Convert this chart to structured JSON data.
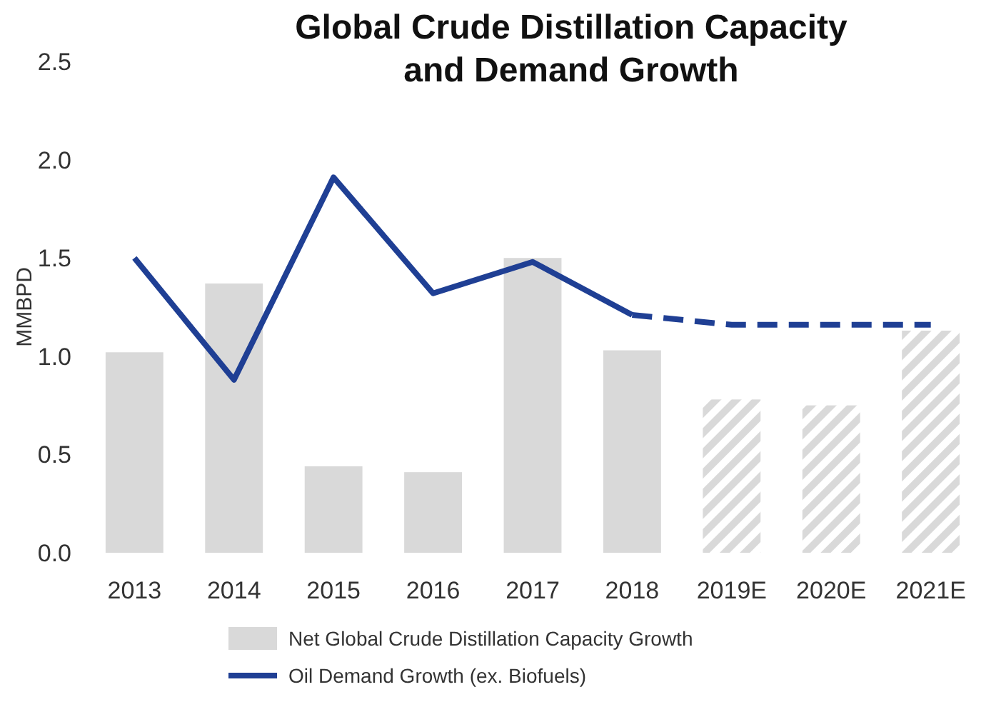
{
  "chart_data": {
    "type": "bar",
    "title": "Global Crude Distillation Capacity\nand Demand Growth",
    "ylabel": "MMBPD",
    "categories": [
      "2013",
      "2014",
      "2015",
      "2016",
      "2017",
      "2018",
      "2019E",
      "2020E",
      "2021E"
    ],
    "series": [
      {
        "name": "Net Global Crude Distillation Capacity Growth",
        "color": "#d9d9d9",
        "values": [
          1.02,
          1.37,
          0.44,
          0.41,
          1.5,
          1.03,
          null,
          null,
          null
        ]
      },
      {
        "color": "#d9d9d9",
        "values": [
          null,
          null,
          null,
          null,
          null,
          null,
          0.78,
          0.75,
          1.13
        ]
      },
      {
        "name": "Oil Demand Growth (ex. Biofuels)",
        "type": "line",
        "color": "#1f3f94",
        "line_style": "solid",
        "values": [
          1.5,
          0.88,
          1.91,
          1.32,
          1.48,
          1.21,
          null,
          null,
          null
        ]
      },
      {
        "type": "line",
        "color": "#1f3f94",
        "line_style": "dashed",
        "values": [
          null,
          null,
          null,
          null,
          null,
          1.21,
          1.16,
          1.16,
          1.16
        ]
      }
    ],
    "ylim": [
      0,
      2.5
    ],
    "yticks": [
      {
        "value": 0,
        "label": "0.0"
      },
      {
        "value": 0.5,
        "label": "0.5"
      },
      {
        "value": 1,
        "label": "1.0"
      },
      {
        "value": 1.5,
        "label": "1.5"
      },
      {
        "value": 2,
        "label": "2.0"
      },
      {
        "value": 2.5,
        "label": "2.5"
      }
    ],
    "grid": false,
    "legend": "bottom"
  }
}
